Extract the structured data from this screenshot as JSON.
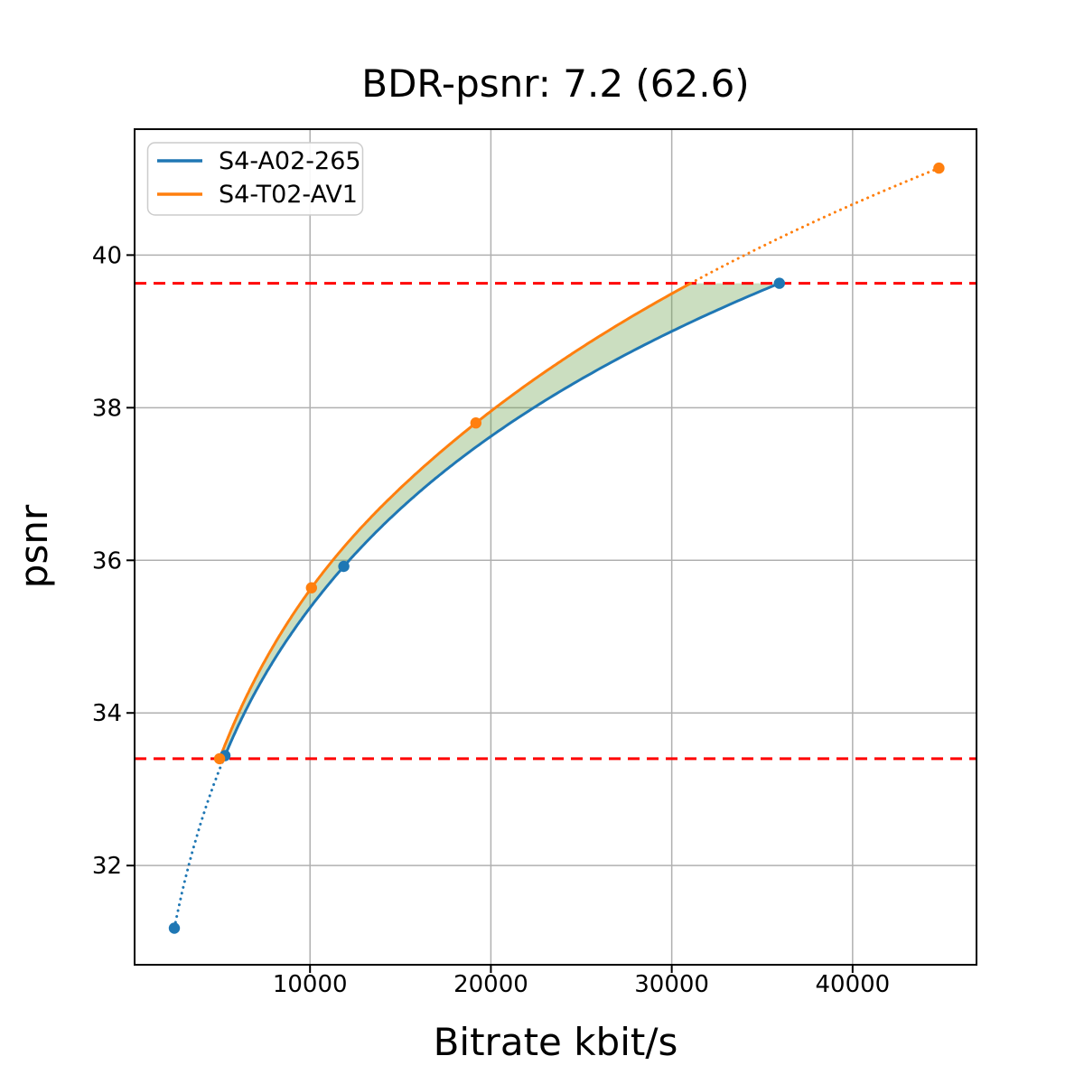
{
  "chart_data": {
    "type": "line",
    "title": "BDR-psnr: 7.2 (62.6)",
    "xlabel": "Bitrate kbit/s",
    "ylabel": "psnr",
    "xlim": [
      300,
      46900
    ],
    "ylim": [
      30.7,
      41.65
    ],
    "xticks": [
      10000,
      20000,
      30000,
      40000
    ],
    "yticks": [
      32,
      34,
      36,
      38,
      40
    ],
    "grid": true,
    "grid_color": "#b0b0b0",
    "legend_position": "upper-left",
    "series": [
      {
        "name": "S4-A02-265",
        "color": "#1f77b4",
        "points_bitrate_psnr": [
          [
            2500,
            31.18
          ],
          [
            5300,
            33.44
          ],
          [
            11870,
            35.92
          ],
          [
            35950,
            39.63
          ]
        ]
      },
      {
        "name": "S4-T02-AV1",
        "color": "#ff7f0e",
        "points_bitrate_psnr": [
          [
            5000,
            33.4
          ],
          [
            10080,
            35.64
          ],
          [
            19170,
            37.8
          ],
          [
            44770,
            41.14
          ]
        ]
      }
    ],
    "overlap_psnr_bounds": [
      33.4,
      39.63
    ],
    "overlap_line_color": "#ff0000",
    "fill_between_color": "rgba(106, 160, 74, 0.35)",
    "line_style_inside_overlap": "solid",
    "line_style_outside_overlap": "dotted"
  }
}
